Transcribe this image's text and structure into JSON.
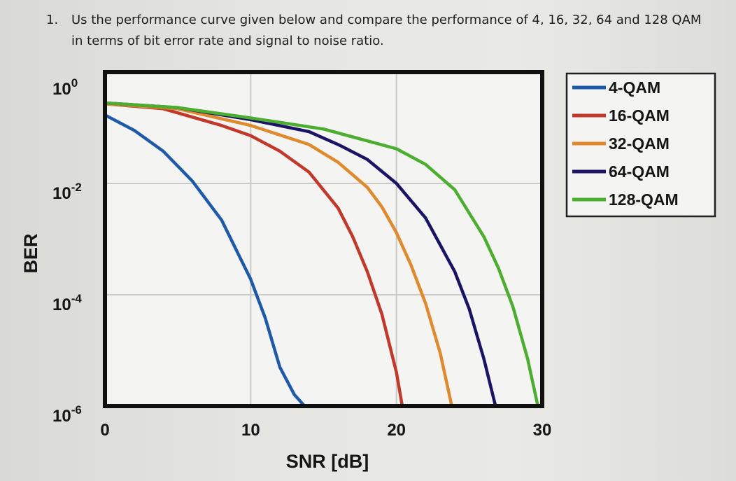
{
  "question": {
    "number": "1.",
    "text": "Us the performance curve given below and compare the performance of 4, 16, 32, 64 and 128 QAM in terms of bit error rate and signal to noise ratio."
  },
  "chart_data": {
    "type": "line",
    "title": "",
    "xlabel": "SNR [dB]",
    "ylabel": "BER",
    "xlim": [
      0,
      30
    ],
    "ylim": [
      1e-06,
      1
    ],
    "yscale": "log",
    "grid": true,
    "legend_position": "right-outside-top",
    "x_ticks": [
      "0",
      "10",
      "20",
      "30"
    ],
    "y_ticks": [
      {
        "base": "10",
        "exp": "0"
      },
      {
        "base": "10",
        "exp": "-2"
      },
      {
        "base": "10",
        "exp": "-4"
      },
      {
        "base": "10",
        "exp": "-6"
      }
    ],
    "series": [
      {
        "name": "4-QAM",
        "color": "#1f5aa8",
        "x": [
          0,
          2,
          4,
          6,
          8,
          10,
          11,
          12,
          13,
          13.7
        ],
        "y": [
          0.17,
          0.09,
          0.038,
          0.011,
          0.0022,
          0.00019,
          3.8e-05,
          5e-06,
          1.6e-06,
          1e-06
        ]
      },
      {
        "name": "16-QAM",
        "color": "#c0392b",
        "x": [
          0,
          4,
          8,
          10,
          12,
          14,
          16,
          17,
          18,
          19,
          20,
          20.4
        ],
        "y": [
          0.27,
          0.22,
          0.11,
          0.072,
          0.038,
          0.016,
          0.0036,
          0.0011,
          0.00026,
          4.5e-05,
          4e-06,
          1e-06
        ]
      },
      {
        "name": "32-QAM",
        "color": "#e08a2e",
        "x": [
          0,
          5,
          10,
          14,
          16,
          18,
          19,
          20,
          21,
          22,
          23,
          23.8
        ],
        "y": [
          0.27,
          0.22,
          0.11,
          0.05,
          0.024,
          0.0085,
          0.0038,
          0.0013,
          0.00034,
          7e-05,
          9e-06,
          1e-06
        ]
      },
      {
        "name": "64-QAM",
        "color": "#1b1464",
        "x": [
          0,
          5,
          10,
          14,
          16,
          18,
          20,
          22,
          24,
          25,
          26,
          26.8
        ],
        "y": [
          0.28,
          0.23,
          0.14,
          0.085,
          0.05,
          0.027,
          0.01,
          0.0024,
          0.00026,
          5.5e-05,
          7e-06,
          1e-06
        ]
      },
      {
        "name": "128-QAM",
        "color": "#4cae2f",
        "x": [
          0,
          5,
          10,
          15,
          20,
          22,
          24,
          26,
          27,
          28,
          29,
          29.7
        ],
        "y": [
          0.28,
          0.23,
          0.15,
          0.095,
          0.042,
          0.022,
          0.0077,
          0.0011,
          0.0003,
          6e-05,
          7e-06,
          1e-06
        ]
      }
    ]
  }
}
